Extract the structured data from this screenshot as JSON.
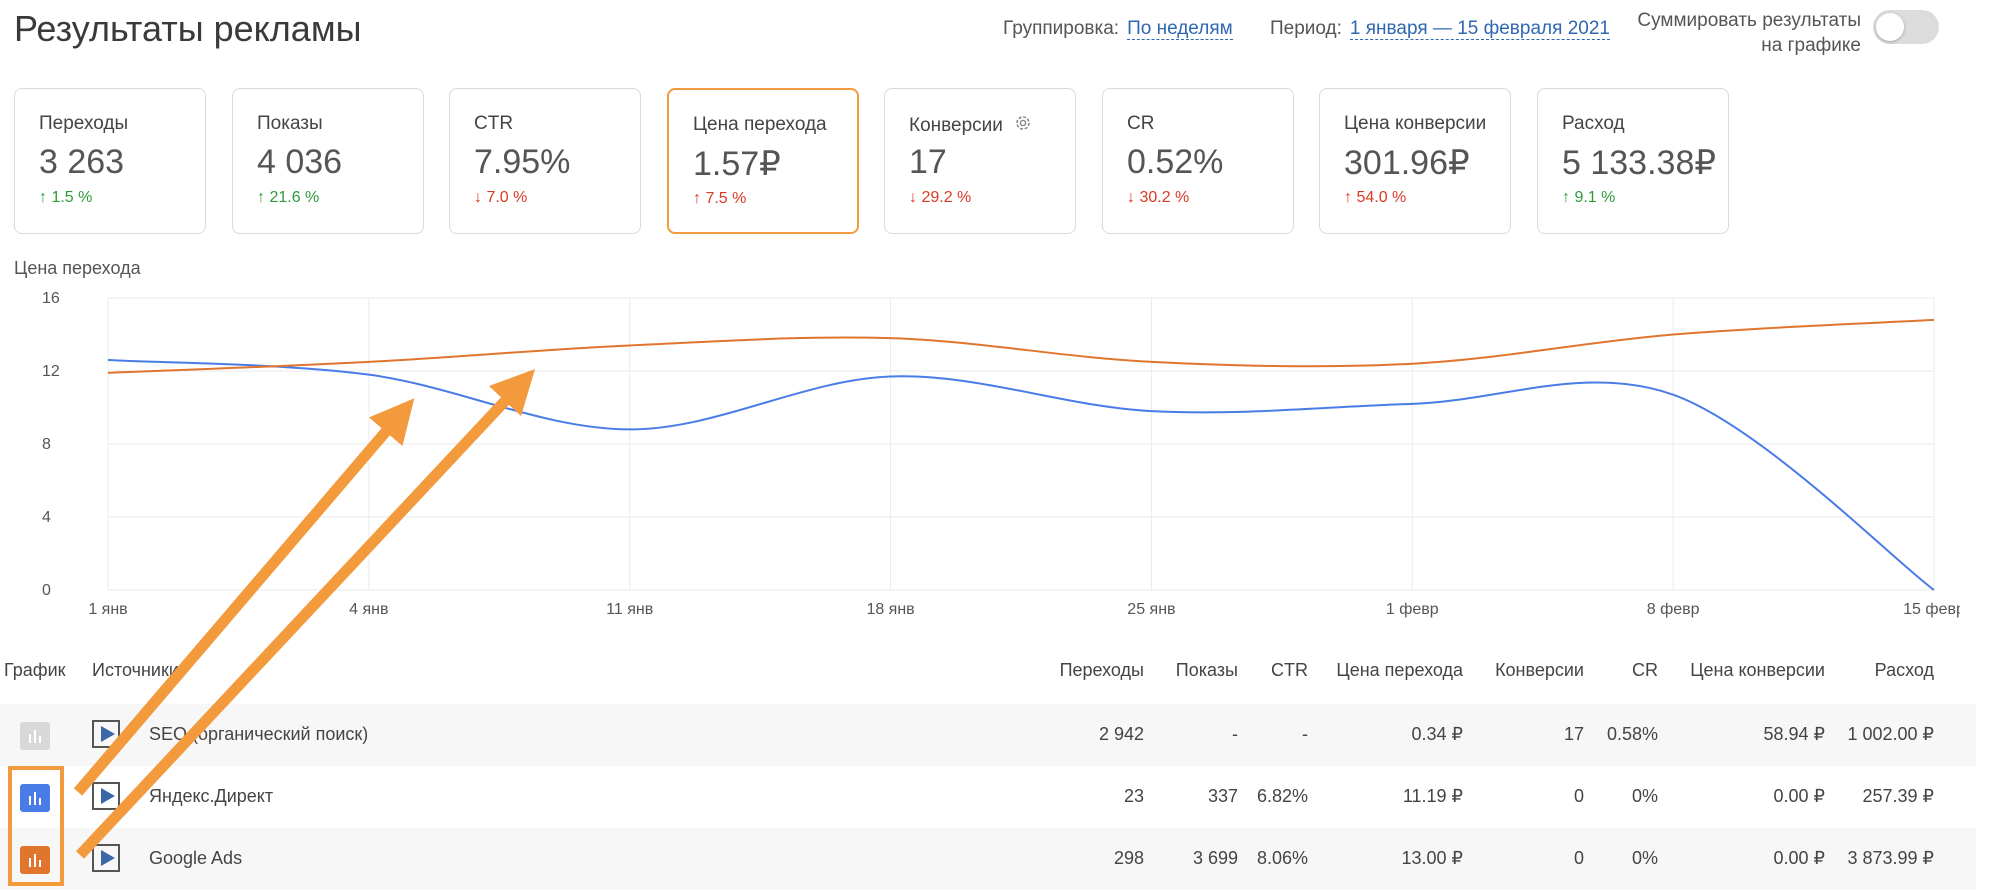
{
  "page_title": "Результаты рекламы",
  "grouping": {
    "label": "Группировка:",
    "value": "По неделям"
  },
  "period": {
    "label": "Период:",
    "value": "1 января — 15 февраля 2021"
  },
  "sum_toggle": {
    "line1": "Суммировать результаты",
    "line2": "на графике",
    "on": false
  },
  "cards": [
    {
      "label": "Переходы",
      "value": "3 263",
      "arrow": "↑",
      "change": "1.5 %",
      "dir": "up"
    },
    {
      "label": "Показы",
      "value": "4 036",
      "arrow": "↑",
      "change": "21.6 %",
      "dir": "up"
    },
    {
      "label": "CTR",
      "value": "7.95%",
      "arrow": "↓",
      "change": "7.0 %",
      "dir": "down"
    },
    {
      "label": "Цена перехода",
      "value": "1.57₽",
      "arrow": "↑",
      "change": "7.5 %",
      "dir": "down",
      "active": true
    },
    {
      "label": "Конверсии",
      "value": "17",
      "arrow": "↓",
      "change": "29.2 %",
      "dir": "down",
      "icon": "gear-icon"
    },
    {
      "label": "CR",
      "value": "0.52%",
      "arrow": "↓",
      "change": "30.2 %",
      "dir": "down"
    },
    {
      "label": "Цена конверсии",
      "value": "301.96₽",
      "arrow": "↑",
      "change": "54.0 %",
      "dir": "down"
    },
    {
      "label": "Расход",
      "value": "5 133.38₽",
      "arrow": "↑",
      "change": "9.1 %",
      "dir": "up"
    }
  ],
  "chart_data": {
    "type": "line",
    "title": "Цена перехода",
    "x": [
      "1 янв",
      "4 янв",
      "11 янв",
      "18 янв",
      "25 янв",
      "1 февр",
      "8 февр",
      "15 февр"
    ],
    "yticks": [
      0,
      4,
      8,
      12,
      16
    ],
    "ylim": [
      0,
      16
    ],
    "grid": true,
    "series": [
      {
        "color": "#4a7ce8",
        "values": [
          12.6,
          11.8,
          8.8,
          11.7,
          9.8,
          10.2,
          10.7,
          0
        ]
      },
      {
        "color": "#e0762e",
        "values": [
          11.9,
          12.5,
          13.4,
          13.8,
          12.5,
          12.4,
          14.0,
          14.8
        ]
      }
    ]
  },
  "table": {
    "headers": {
      "chart": "График",
      "source": "Источники",
      "clicks": "Переходы",
      "views": "Показы",
      "ctr": "CTR",
      "cpc": "Цена перехода",
      "conv": "Конверсии",
      "cr": "CR",
      "cpa": "Цена конверсии",
      "spend": "Расход"
    },
    "rows": [
      {
        "color": "#d8d8d8",
        "source": "SEO (органический поиск)",
        "clicks": "2 942",
        "views": "-",
        "ctr": "-",
        "cpc": "0.34 ₽",
        "conv": "17",
        "cr": "0.58%",
        "cpa": "58.94 ₽",
        "spend": "1 002.00 ₽"
      },
      {
        "color": "#4a7ce8",
        "source": "Яндекс.Директ",
        "clicks": "23",
        "views": "337",
        "ctr": "6.82%",
        "cpc": "11.19 ₽",
        "conv": "0",
        "cr": "0%",
        "cpa": "0.00 ₽",
        "spend": "257.39 ₽"
      },
      {
        "color": "#e0762e",
        "source": "Google Ads",
        "clicks": "298",
        "views": "3 699",
        "ctr": "8.06%",
        "cpc": "13.00 ₽",
        "conv": "0",
        "cr": "0%",
        "cpa": "0.00 ₽",
        "spend": "3 873.99 ₽"
      }
    ]
  },
  "annotation_color": "#f39a3d"
}
